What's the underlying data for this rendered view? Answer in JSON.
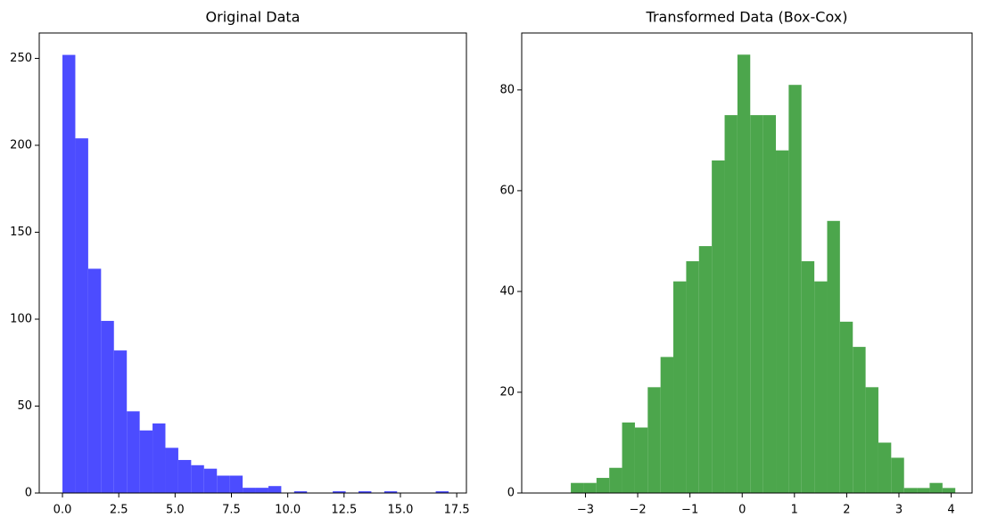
{
  "chart_data": [
    {
      "type": "histogram",
      "title": "Original Data",
      "color": "#4c4cff",
      "bins": [
        0,
        0.571,
        1.143,
        1.714,
        2.285,
        2.857,
        3.428,
        3.999,
        4.57,
        5.142,
        5.713,
        6.284,
        6.856,
        7.427,
        7.998,
        8.57,
        9.141,
        9.712,
        10.283,
        10.855,
        11.426,
        11.997,
        12.569,
        13.14,
        13.711,
        14.283,
        14.854,
        15.425,
        15.996,
        16.568,
        17.139
      ],
      "values": [
        252,
        204,
        129,
        99,
        82,
        47,
        36,
        40,
        26,
        19,
        16,
        14,
        10,
        10,
        3,
        3,
        4,
        0,
        1,
        0,
        0,
        1,
        0,
        1,
        0,
        1,
        0,
        0,
        0,
        1
      ],
      "xlim": [
        -1.03,
        17.93
      ],
      "ylim": [
        0,
        264.6
      ],
      "xticks": [
        {
          "value": 0,
          "label": "0.0"
        },
        2.5,
        {
          "value": 5,
          "label": "5.0"
        },
        7.5,
        {
          "value": 10,
          "label": "10.0"
        },
        12.5,
        {
          "value": 15,
          "label": "15.0"
        },
        17.5
      ],
      "yticks": [
        0,
        50,
        100,
        150,
        200,
        250
      ]
    },
    {
      "type": "histogram",
      "title": "Transformed Data (Box-Cox)",
      "color": "#4ca64c",
      "bins": [
        -3.28,
        -3.035,
        -2.789,
        -2.544,
        -2.299,
        -2.053,
        -1.808,
        -1.563,
        -1.318,
        -1.072,
        -0.827,
        -0.582,
        -0.336,
        -0.091,
        0.154,
        0.4,
        0.645,
        0.89,
        1.135,
        1.381,
        1.626,
        1.871,
        2.117,
        2.362,
        2.607,
        2.852,
        3.098,
        3.343,
        3.588,
        3.834,
        4.079
      ],
      "values": [
        2,
        2,
        3,
        5,
        14,
        13,
        21,
        27,
        42,
        46,
        49,
        66,
        75,
        87,
        75,
        75,
        68,
        81,
        46,
        42,
        54,
        34,
        29,
        21,
        10,
        7,
        1,
        1,
        2,
        1
      ],
      "xlim": [
        -4.22,
        4.4
      ],
      "ylim": [
        0,
        91.3
      ],
      "xticks": [
        {
          "value": -3,
          "label": "−3"
        },
        {
          "value": -2,
          "label": "−2"
        },
        {
          "value": -1,
          "label": "−1"
        },
        0,
        1,
        2,
        3,
        4
      ],
      "yticks": [
        0,
        20,
        40,
        60,
        80
      ]
    }
  ]
}
